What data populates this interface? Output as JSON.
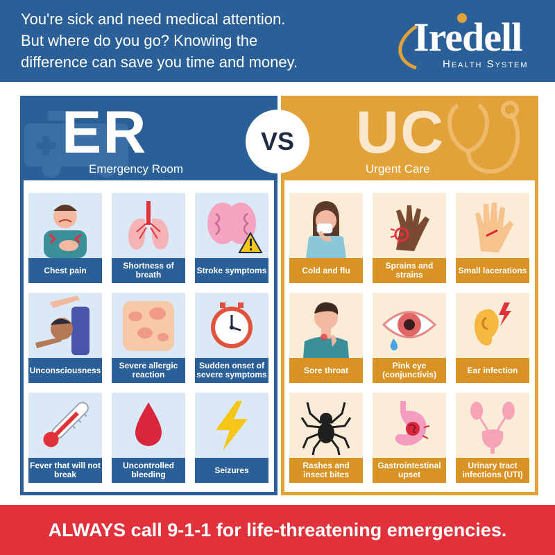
{
  "header": {
    "lines": [
      "You're sick and need medical attention.",
      "But where do you go? Knowing the",
      "difference can save you time and money."
    ],
    "logo": {
      "name": "Iredell",
      "subtitle": "Health System"
    }
  },
  "vs_label": "VS",
  "er": {
    "title": "ER",
    "subtitle": "Emergency Room",
    "items": [
      {
        "label": "Chest pain",
        "icon": "chest-pain-icon"
      },
      {
        "label": "Shortness of breath",
        "icon": "lungs-icon"
      },
      {
        "label": "Stroke symptoms",
        "icon": "brain-warning-icon"
      },
      {
        "label": "Unconsciousness",
        "icon": "fainting-person-icon"
      },
      {
        "label": "Severe allergic reaction",
        "icon": "rash-skin-icon"
      },
      {
        "label": "Sudden onset of severe symptoms",
        "icon": "clock-icon"
      },
      {
        "label": "Fever that will not break",
        "icon": "thermometer-icon"
      },
      {
        "label": "Uncontrolled bleeding",
        "icon": "blood-drop-icon"
      },
      {
        "label": "Seizures",
        "icon": "lightning-bolt-icon"
      }
    ]
  },
  "uc": {
    "title": "UC",
    "subtitle": "Urgent Care",
    "items": [
      {
        "label": "Cold and flu",
        "icon": "sneezing-person-icon"
      },
      {
        "label": "Sprains and strains",
        "icon": "injured-hand-icon"
      },
      {
        "label": "Small lacerations",
        "icon": "cut-hand-icon"
      },
      {
        "label": "Sore throat",
        "icon": "sore-throat-person-icon"
      },
      {
        "label": "Pink eye (conjunctivis)",
        "icon": "red-eye-icon"
      },
      {
        "label": "Ear infection",
        "icon": "ear-pain-icon"
      },
      {
        "label": "Rashes and insect bites",
        "icon": "spider-icon"
      },
      {
        "label": "Gastrointestinal upset",
        "icon": "stomach-icon"
      },
      {
        "label": "Urinary tract infections (UTI)",
        "icon": "urinary-tract-icon"
      }
    ]
  },
  "footer": {
    "text": "ALWAYS call 9-1-1 for life-threatening emergencies."
  },
  "colors": {
    "er_blue": "#2a6097",
    "er_card": "#dbe8f5",
    "uc_orange": "#e3a13a",
    "uc_card": "#fbecd8",
    "footer_red": "#e1323c"
  }
}
